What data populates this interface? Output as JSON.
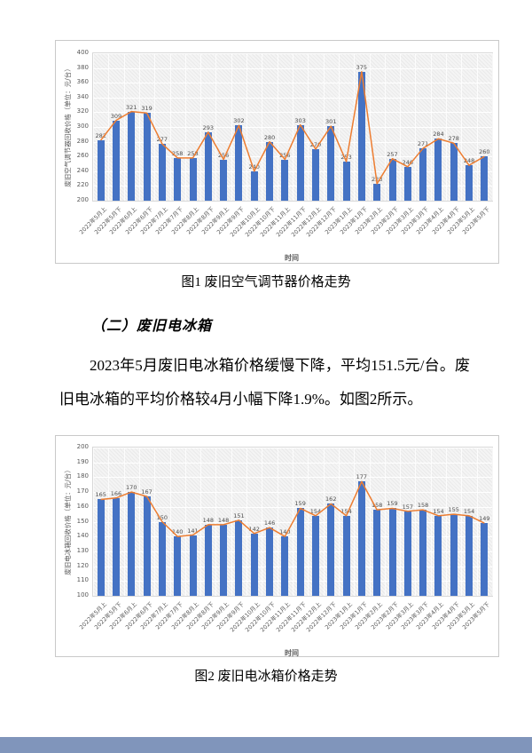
{
  "page": {
    "caption1": "图1  废旧空气调节器价格走势",
    "heading": "（二）废旧电冰箱",
    "paragraph": "2023年5月废旧电冰箱价格缓慢下降，平均151.5元/台。废旧电冰箱的平均价格较4月小幅下降1.9%。如图2所示。",
    "caption2": "图2  废旧电冰箱价格走势"
  },
  "colors": {
    "bar": "#4472C4",
    "line": "#ED7D31",
    "footer_strip": "#8095bb"
  },
  "chart_data": [
    {
      "id": "figure1",
      "type": "bar",
      "line_overlay": true,
      "caption": "图1  废旧空气调节器价格走势",
      "ylabel": "废旧空气调节器回收价格（单位：元/台）",
      "xlabel": "时间",
      "ylim": [
        200,
        400
      ],
      "ytick_step": 20,
      "grid": true,
      "legend": "none",
      "categories": [
        "2022年5月上",
        "2022年5月下",
        "2022年6月上",
        "2022年6月下",
        "2022年7月上",
        "2022年7月下",
        "2022年8月上",
        "2022年8月下",
        "2022年9月上",
        "2022年9月下",
        "2022年10月上",
        "2022年10月下",
        "2022年11月上",
        "2022年11月下",
        "2022年12月上",
        "2022年12月下",
        "2023年1月上",
        "2023年1月下",
        "2023年2月上",
        "2023年2月下",
        "2023年3月上",
        "2023年3月下",
        "2023年4月上",
        "2023年4月下",
        "2023年5月上",
        "2023年5月下"
      ],
      "values": [
        282,
        309,
        321,
        319,
        277,
        258,
        258,
        293,
        256,
        302,
        240,
        280,
        256,
        303,
        270,
        301,
        253,
        375,
        223,
        257,
        246,
        271,
        284,
        278,
        248,
        260
      ]
    },
    {
      "id": "figure2",
      "type": "bar",
      "line_overlay": true,
      "caption": "图2  废旧电冰箱价格走势",
      "ylabel": "废旧电冰箱回收价格（单位：元/台）",
      "xlabel": "时间",
      "ylim": [
        100,
        200
      ],
      "ytick_step": 10,
      "grid": true,
      "legend": "none",
      "categories": [
        "2022年5月上",
        "2022年5月下",
        "2022年6月上",
        "2022年6月下",
        "2022年7月上",
        "2022年7月下",
        "2022年8月上",
        "2022年8月下",
        "2022年9月上",
        "2022年9月下",
        "2022年10月上",
        "2022年10月下",
        "2022年11月上",
        "2022年11月下",
        "2022年12月上",
        "2022年12月下",
        "2023年1月上",
        "2023年1月下",
        "2023年2月上",
        "2023年2月下",
        "2023年3月上",
        "2023年3月下",
        "2023年4月上",
        "2023年4月下",
        "2023年5月上",
        "2023年5月下"
      ],
      "values": [
        165,
        166,
        170,
        167,
        150,
        140,
        141,
        148,
        148,
        151,
        142,
        146,
        140,
        159,
        154,
        162,
        154,
        177,
        158,
        159,
        157,
        158,
        154,
        155,
        154,
        149
      ]
    }
  ]
}
